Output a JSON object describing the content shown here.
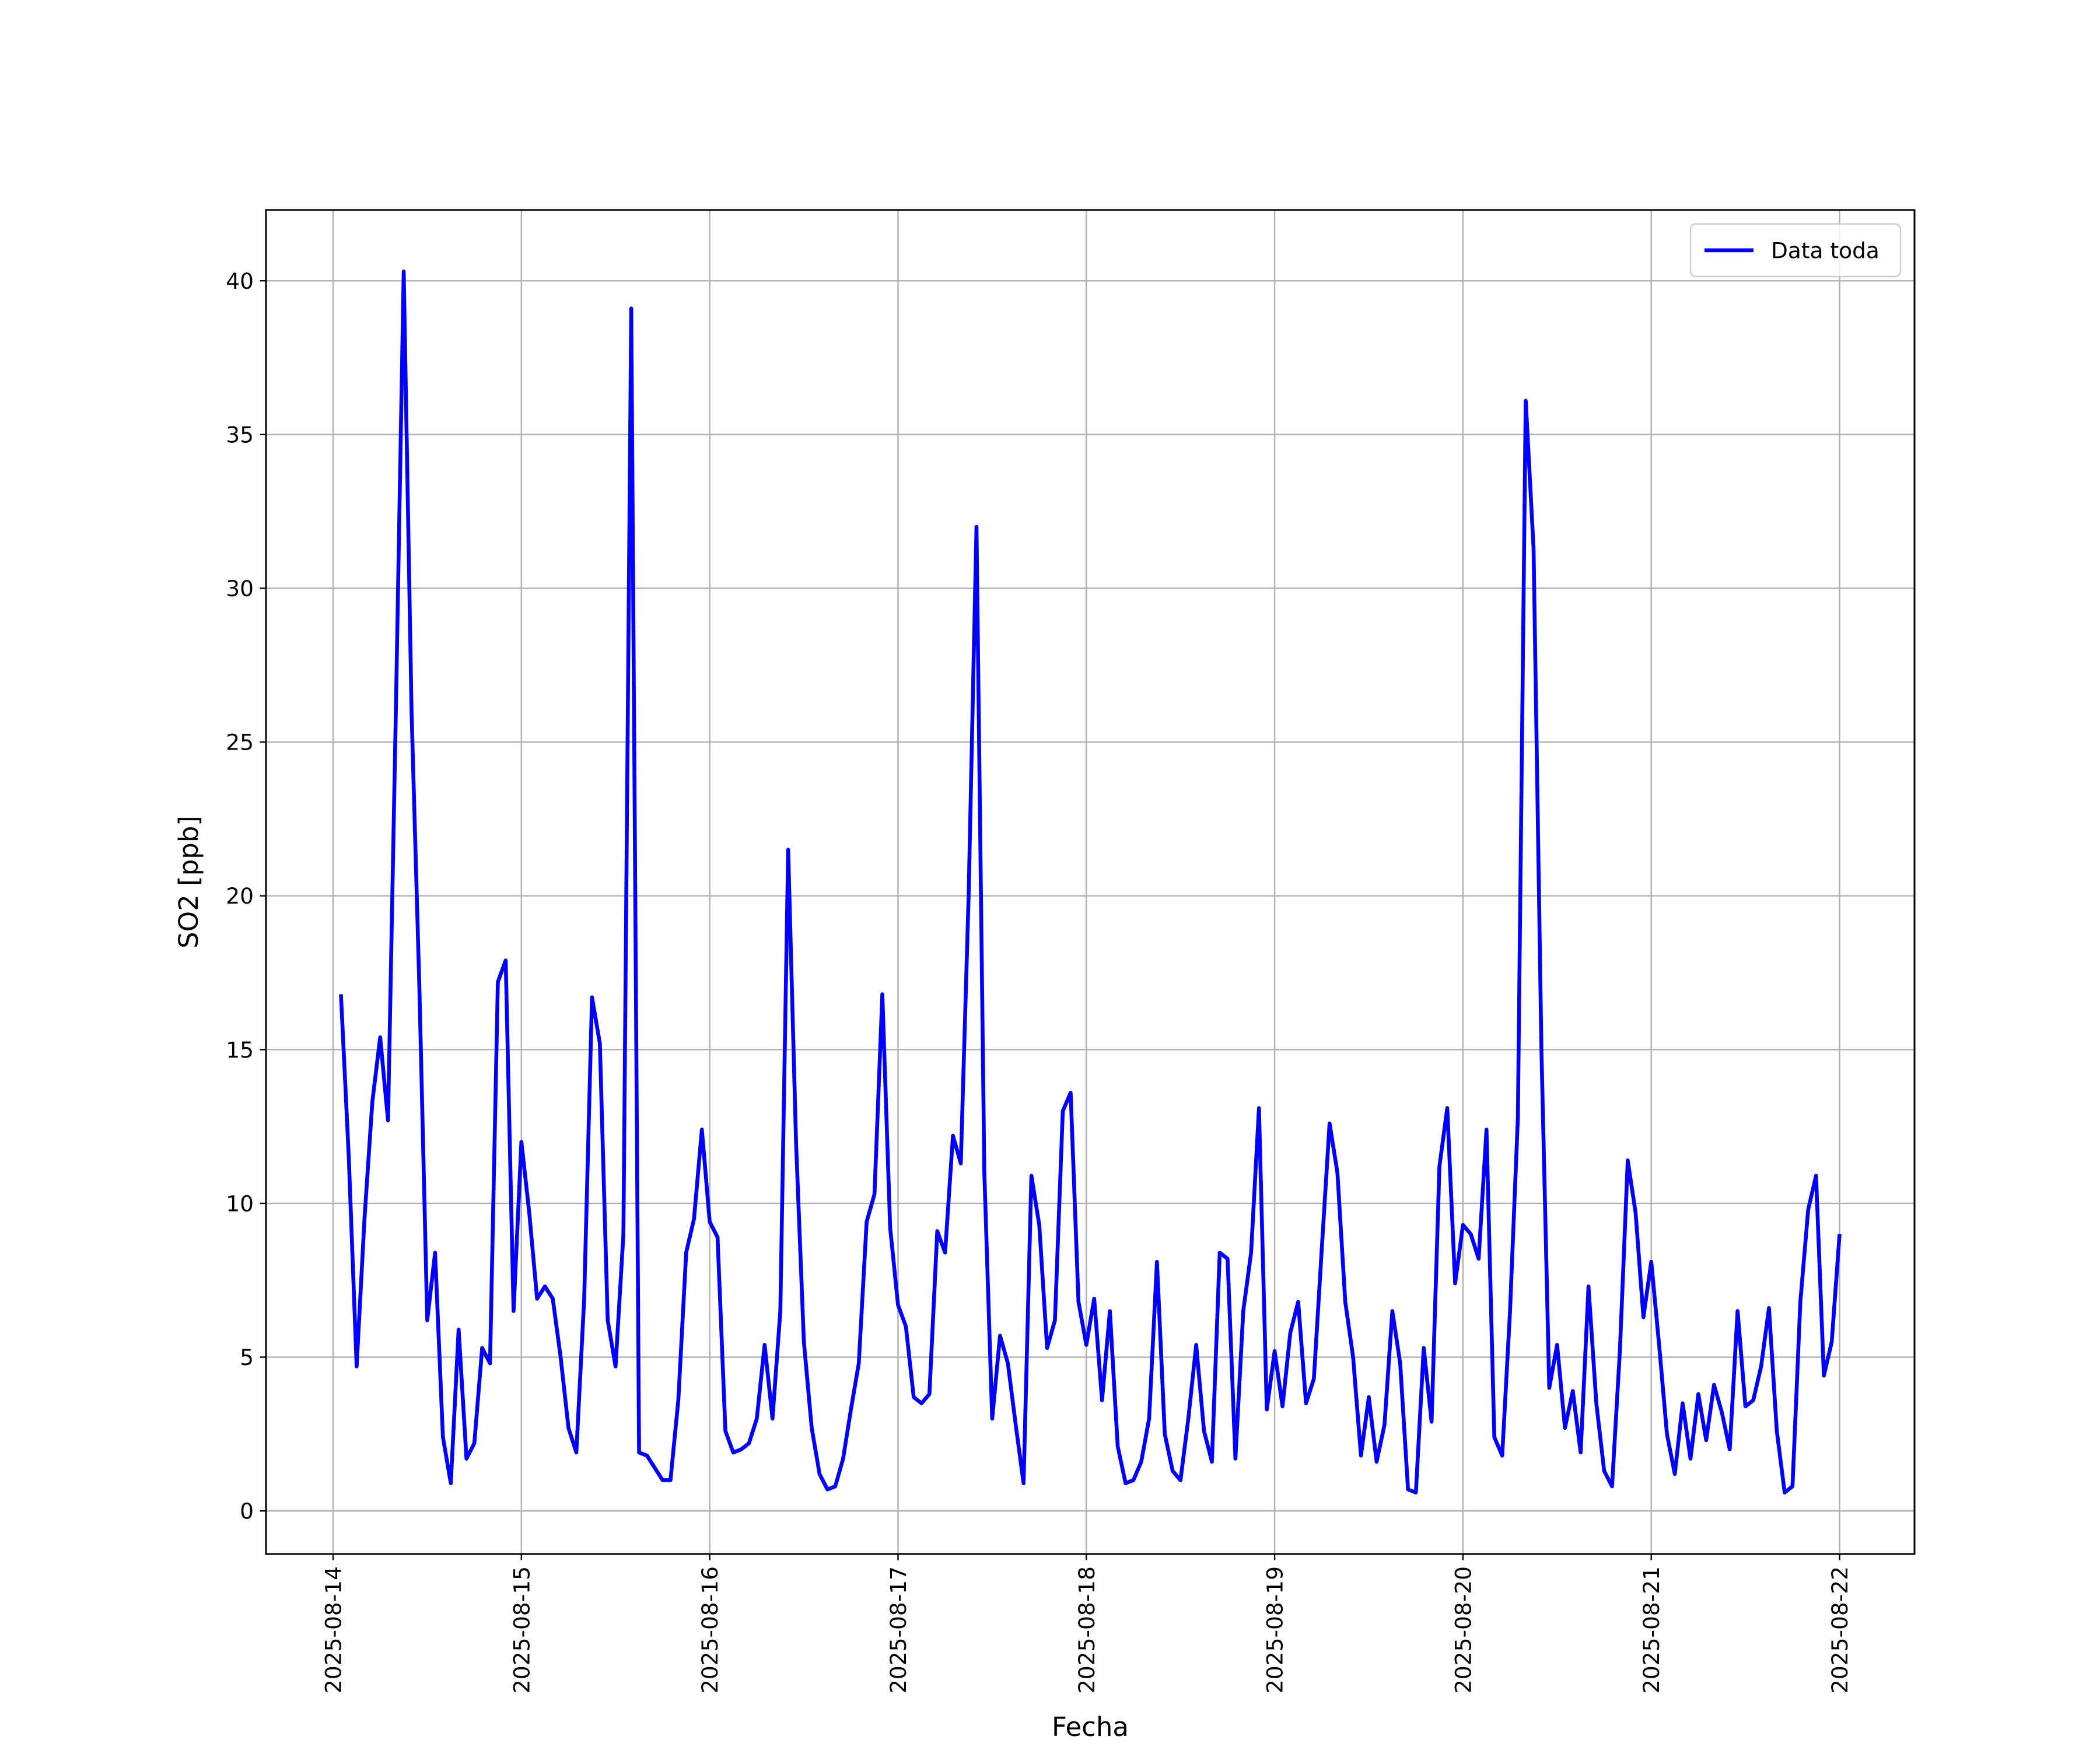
{
  "chart_data": {
    "type": "line",
    "x_label": "Fecha",
    "y_label": "SO2 [ppb]",
    "x": [
      "2025-08-14T01:00",
      "2025-08-14T02:00",
      "2025-08-14T03:00",
      "2025-08-14T04:00",
      "2025-08-14T05:00",
      "2025-08-14T06:00",
      "2025-08-14T07:00",
      "2025-08-14T08:00",
      "2025-08-14T09:00",
      "2025-08-14T10:00",
      "2025-08-14T11:00",
      "2025-08-14T12:00",
      "2025-08-14T13:00",
      "2025-08-14T14:00",
      "2025-08-14T15:00",
      "2025-08-14T16:00",
      "2025-08-14T17:00",
      "2025-08-14T18:00",
      "2025-08-14T19:00",
      "2025-08-14T20:00",
      "2025-08-14T21:00",
      "2025-08-14T22:00",
      "2025-08-14T23:00",
      "2025-08-15T00:00",
      "2025-08-15T01:00",
      "2025-08-15T02:00",
      "2025-08-15T03:00",
      "2025-08-15T04:00",
      "2025-08-15T05:00",
      "2025-08-15T06:00",
      "2025-08-15T07:00",
      "2025-08-15T08:00",
      "2025-08-15T09:00",
      "2025-08-15T10:00",
      "2025-08-15T11:00",
      "2025-08-15T12:00",
      "2025-08-15T13:00",
      "2025-08-15T14:00",
      "2025-08-15T15:00",
      "2025-08-15T16:00",
      "2025-08-15T17:00",
      "2025-08-15T18:00",
      "2025-08-15T19:00",
      "2025-08-15T20:00",
      "2025-08-15T21:00",
      "2025-08-15T22:00",
      "2025-08-15T23:00",
      "2025-08-16T00:00",
      "2025-08-16T01:00",
      "2025-08-16T02:00",
      "2025-08-16T03:00",
      "2025-08-16T04:00",
      "2025-08-16T05:00",
      "2025-08-16T06:00",
      "2025-08-16T07:00",
      "2025-08-16T08:00",
      "2025-08-16T09:00",
      "2025-08-16T10:00",
      "2025-08-16T11:00",
      "2025-08-16T12:00",
      "2025-08-16T13:00",
      "2025-08-16T14:00",
      "2025-08-16T15:00",
      "2025-08-16T16:00",
      "2025-08-16T17:00",
      "2025-08-16T18:00",
      "2025-08-16T19:00",
      "2025-08-16T20:00",
      "2025-08-16T21:00",
      "2025-08-16T22:00",
      "2025-08-16T23:00",
      "2025-08-17T00:00",
      "2025-08-17T01:00",
      "2025-08-17T02:00",
      "2025-08-17T03:00",
      "2025-08-17T04:00",
      "2025-08-17T05:00",
      "2025-08-17T06:00",
      "2025-08-17T07:00",
      "2025-08-17T08:00",
      "2025-08-17T09:00",
      "2025-08-17T10:00",
      "2025-08-17T11:00",
      "2025-08-17T12:00",
      "2025-08-17T13:00",
      "2025-08-17T14:00",
      "2025-08-17T15:00",
      "2025-08-17T16:00",
      "2025-08-17T17:00",
      "2025-08-17T18:00",
      "2025-08-17T19:00",
      "2025-08-17T20:00",
      "2025-08-17T21:00",
      "2025-08-17T22:00",
      "2025-08-17T23:00",
      "2025-08-18T00:00",
      "2025-08-18T01:00",
      "2025-08-18T02:00",
      "2025-08-18T03:00",
      "2025-08-18T04:00",
      "2025-08-18T05:00",
      "2025-08-18T06:00",
      "2025-08-18T07:00",
      "2025-08-18T08:00",
      "2025-08-18T09:00",
      "2025-08-18T10:00",
      "2025-08-18T11:00",
      "2025-08-18T12:00",
      "2025-08-18T13:00",
      "2025-08-18T14:00",
      "2025-08-18T15:00",
      "2025-08-18T16:00",
      "2025-08-18T17:00",
      "2025-08-18T18:00",
      "2025-08-18T19:00",
      "2025-08-18T20:00",
      "2025-08-18T21:00",
      "2025-08-18T22:00",
      "2025-08-18T23:00",
      "2025-08-19T00:00",
      "2025-08-19T01:00",
      "2025-08-19T02:00",
      "2025-08-19T03:00",
      "2025-08-19T04:00",
      "2025-08-19T05:00",
      "2025-08-19T06:00",
      "2025-08-19T07:00",
      "2025-08-19T08:00",
      "2025-08-19T09:00",
      "2025-08-19T10:00",
      "2025-08-19T11:00",
      "2025-08-19T12:00",
      "2025-08-19T13:00",
      "2025-08-19T14:00",
      "2025-08-19T15:00",
      "2025-08-19T16:00",
      "2025-08-19T17:00",
      "2025-08-19T18:00",
      "2025-08-19T19:00",
      "2025-08-19T20:00",
      "2025-08-19T21:00",
      "2025-08-19T22:00",
      "2025-08-19T23:00",
      "2025-08-20T00:00",
      "2025-08-20T01:00",
      "2025-08-20T02:00",
      "2025-08-20T03:00",
      "2025-08-20T04:00",
      "2025-08-20T05:00",
      "2025-08-20T06:00",
      "2025-08-20T07:00",
      "2025-08-20T08:00",
      "2025-08-20T09:00",
      "2025-08-20T10:00",
      "2025-08-20T11:00",
      "2025-08-20T12:00",
      "2025-08-20T13:00",
      "2025-08-20T14:00",
      "2025-08-20T15:00",
      "2025-08-20T16:00",
      "2025-08-20T17:00",
      "2025-08-20T18:00",
      "2025-08-20T19:00",
      "2025-08-20T20:00",
      "2025-08-20T21:00",
      "2025-08-20T22:00",
      "2025-08-20T23:00",
      "2025-08-21T00:00",
      "2025-08-21T01:00",
      "2025-08-21T02:00",
      "2025-08-21T03:00",
      "2025-08-21T04:00",
      "2025-08-21T05:00",
      "2025-08-21T06:00",
      "2025-08-21T07:00",
      "2025-08-21T08:00",
      "2025-08-21T09:00",
      "2025-08-21T10:00",
      "2025-08-21T11:00",
      "2025-08-21T12:00",
      "2025-08-21T13:00",
      "2025-08-21T14:00",
      "2025-08-21T15:00",
      "2025-08-21T16:00",
      "2025-08-21T17:00",
      "2025-08-21T18:00",
      "2025-08-21T19:00",
      "2025-08-21T20:00",
      "2025-08-21T21:00",
      "2025-08-21T22:00",
      "2025-08-21T23:00",
      "2025-08-22T00:00"
    ],
    "series": [
      {
        "name": "Data toda",
        "color": "#0000ff",
        "values": [
          16.8,
          11.5,
          4.7,
          9.5,
          13.3,
          15.4,
          12.7,
          26,
          40.3,
          26,
          17,
          6.2,
          8.4,
          2.4,
          0.9,
          5.9,
          1.7,
          2.2,
          5.3,
          4.8,
          17.2,
          17.9,
          6.5,
          12.0,
          9.7,
          6.9,
          7.3,
          6.9,
          5.0,
          2.7,
          1.9,
          6.9,
          16.7,
          15.2,
          6.2,
          4.7,
          9.0,
          39.1,
          1.9,
          1.8,
          1.4,
          1.0,
          1.0,
          3.6,
          8.4,
          9.5,
          12.4,
          9.4,
          8.9,
          2.6,
          1.9,
          2.0,
          2.2,
          3.0,
          5.4,
          3.0,
          6.5,
          21.5,
          12,
          5.5,
          2.7,
          1.2,
          0.7,
          0.8,
          1.7,
          3.3,
          4.8,
          9.4,
          10.3,
          16.8,
          9.2,
          6.7,
          6.0,
          3.7,
          3.5,
          3.8,
          9.1,
          8.4,
          12.2,
          11.3,
          20,
          32.0,
          11,
          3.0,
          5.7,
          4.8,
          2.8,
          0.9,
          10.9,
          9.3,
          5.3,
          6.2,
          13.0,
          13.6,
          6.8,
          5.4,
          6.9,
          3.6,
          6.5,
          2.1,
          0.9,
          1.0,
          1.6,
          3.0,
          8.1,
          2.5,
          1.3,
          1.0,
          3.0,
          5.4,
          2.6,
          1.6,
          8.4,
          8.2,
          1.7,
          6.5,
          8.4,
          13.1,
          3.3,
          5.2,
          3.4,
          5.8,
          6.8,
          3.5,
          4.3,
          8.5,
          12.6,
          11.0,
          6.8,
          5.0,
          1.8,
          3.7,
          1.6,
          2.8,
          6.5,
          4.8,
          0.7,
          0.6,
          5.3,
          2.9,
          11.2,
          13.1,
          7.4,
          9.3,
          9.0,
          8.2,
          12.4,
          2.4,
          1.8,
          6.5,
          12.8,
          36.1,
          31.3,
          15,
          4.0,
          5.4,
          2.7,
          3.9,
          1.9,
          7.3,
          3.5,
          1.3,
          0.8,
          5.2,
          11.4,
          9.7,
          6.3,
          8.1,
          5.4,
          2.5,
          1.2,
          3.5,
          1.7,
          3.8,
          2.3,
          4.1,
          3.2,
          2.0,
          6.5,
          3.4,
          3.6,
          4.7,
          6.6,
          2.6,
          0.6,
          0.8,
          6.8,
          9.8,
          10.9,
          4.4,
          5.5,
          9.0
        ]
      }
    ],
    "xlim": [
      "2025-08-13T15:27",
      "2025-08-22T09:33"
    ],
    "xticks": [
      "2025-08-14",
      "2025-08-15",
      "2025-08-16",
      "2025-08-17",
      "2025-08-18",
      "2025-08-19",
      "2025-08-20",
      "2025-08-21",
      "2025-08-22"
    ],
    "ylim": [
      -1.4,
      42.3
    ],
    "yticks": [
      0,
      5,
      10,
      15,
      20,
      25,
      30,
      35,
      40
    ],
    "grid": true,
    "legend": "upper right"
  }
}
